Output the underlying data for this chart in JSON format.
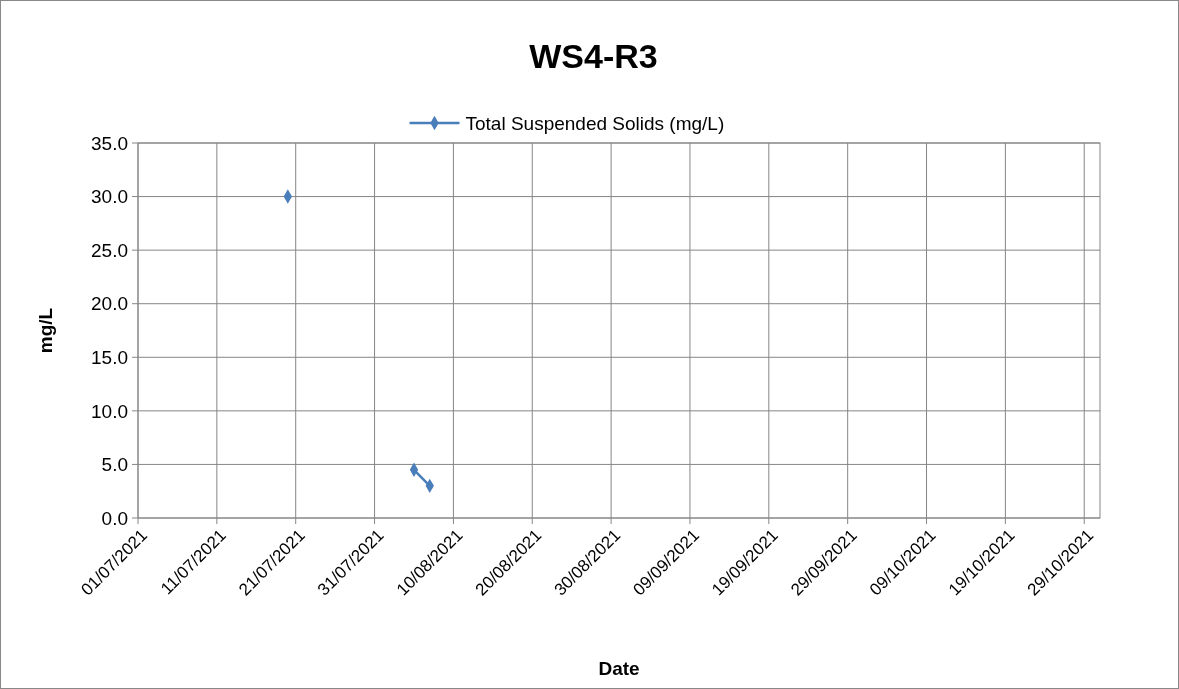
{
  "chart_data": {
    "type": "line",
    "title": "WS4-R3",
    "xlabel": "Date",
    "ylabel": "mg/L",
    "series": [
      {
        "name": "Total Suspended Solids (mg/L)",
        "color": "#4a7ebb",
        "x": [
          "2021-07-20",
          "2021-07-28",
          "2021-08-05",
          "2021-08-07"
        ],
        "values": [
          30.0,
          null,
          4.5,
          3.0
        ]
      }
    ],
    "xlim": [
      "2021-07-01",
      "2021-10-31"
    ],
    "xticks": [
      {
        "value": "2021-07-01",
        "label": "01/07/2021"
      },
      {
        "value": "2021-07-11",
        "label": "11/07/2021"
      },
      {
        "value": "2021-07-21",
        "label": "21/07/2021"
      },
      {
        "value": "2021-07-31",
        "label": "31/07/2021"
      },
      {
        "value": "2021-08-10",
        "label": "10/08/2021"
      },
      {
        "value": "2021-08-20",
        "label": "20/08/2021"
      },
      {
        "value": "2021-08-30",
        "label": "30/08/2021"
      },
      {
        "value": "2021-09-09",
        "label": "09/09/2021"
      },
      {
        "value": "2021-09-19",
        "label": "19/09/2021"
      },
      {
        "value": "2021-09-29",
        "label": "29/09/2021"
      },
      {
        "value": "2021-10-09",
        "label": "09/10/2021"
      },
      {
        "value": "2021-10-19",
        "label": "19/10/2021"
      },
      {
        "value": "2021-10-29",
        "label": "29/10/2021"
      }
    ],
    "ylim": [
      0,
      35
    ],
    "yticks": [
      {
        "value": 0,
        "label": "0.0"
      },
      {
        "value": 5,
        "label": "5.0"
      },
      {
        "value": 10,
        "label": "10.0"
      },
      {
        "value": 15,
        "label": "15.0"
      },
      {
        "value": 20,
        "label": "20.0"
      },
      {
        "value": 25,
        "label": "25.0"
      },
      {
        "value": 30,
        "label": "30.0"
      },
      {
        "value": 35,
        "label": "35.0"
      }
    ],
    "grid": true,
    "legend": "top",
    "marker": "diamond",
    "line_style": "solid"
  }
}
